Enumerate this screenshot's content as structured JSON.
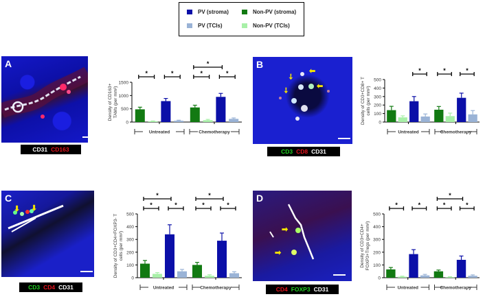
{
  "legend": {
    "items": [
      {
        "label": "PV (stroma)",
        "color": "#0b0fa8"
      },
      {
        "label": "Non-PV (stroma)",
        "color": "#127a12"
      },
      {
        "label": "PV (TCIs)",
        "color": "#9ab3d6"
      },
      {
        "label": "Non-PV (TCIs)",
        "color": "#a8f0a8"
      }
    ]
  },
  "panels": [
    {
      "letter": "A",
      "stain": [
        {
          "text": "CD31",
          "color": "#ffffff"
        },
        {
          "text": "CD163",
          "color": "#e8141e"
        }
      ]
    },
    {
      "letter": "B",
      "stain": [
        {
          "text": "CD3",
          "color": "#22d322"
        },
        {
          "text": "CD8",
          "color": "#e8141e"
        },
        {
          "text": "CD31",
          "color": "#ffffff"
        }
      ]
    },
    {
      "letter": "C",
      "stain": [
        {
          "text": "CD3",
          "color": "#22d322"
        },
        {
          "text": "CD4",
          "color": "#e8141e"
        },
        {
          "text": "CD31",
          "color": "#ffffff"
        }
      ]
    },
    {
      "letter": "D",
      "stain": [
        {
          "text": "CD4",
          "color": "#e8141e"
        },
        {
          "text": "FOXP3",
          "color": "#22d322"
        },
        {
          "text": "CD31",
          "color": "#ffffff"
        }
      ]
    }
  ],
  "chart_data": [
    {
      "type": "bar",
      "panel": "A",
      "ylabel": "Density of CD163+ TAMs (per mm²)",
      "ylim": [
        0,
        1500
      ],
      "yticks": [
        0,
        500,
        1000,
        1500
      ],
      "groups": [
        "Untreated",
        "Chemotherapy"
      ],
      "series_order": [
        "Non-PV (stroma)",
        "Non-PV (TCIs)",
        "PV (stroma)",
        "PV (TCIs)"
      ],
      "series": [
        {
          "name": "Non-PV (stroma)",
          "values": [
            480,
            550
          ],
          "errors": [
            80,
            85
          ]
        },
        {
          "name": "Non-PV (TCIs)",
          "values": [
            30,
            70
          ],
          "errors": [
            10,
            30
          ]
        },
        {
          "name": "PV (stroma)",
          "values": [
            790,
            950
          ],
          "errors": [
            100,
            130
          ]
        },
        {
          "name": "PV (TCIs)",
          "values": [
            50,
            120
          ],
          "errors": [
            20,
            35
          ]
        }
      ],
      "significance": [
        {
          "group": 0,
          "from": 0,
          "to": 1,
          "level": 0,
          "label": "*"
        },
        {
          "group": 0,
          "from": 2,
          "to": 3,
          "level": 0,
          "label": "*"
        },
        {
          "group": 1,
          "from": 0,
          "to": 1,
          "level": 0,
          "label": "*"
        },
        {
          "group": 1,
          "from": 2,
          "to": 3,
          "level": 0,
          "label": "*"
        },
        {
          "group": 1,
          "from": 0,
          "to": 2,
          "level": 1,
          "label": "*"
        }
      ]
    },
    {
      "type": "bar",
      "panel": "B",
      "ylabel": "Density of CD3+CD8+ T cells (per mm²)",
      "ylim": [
        0,
        500
      ],
      "yticks": [
        0,
        100,
        200,
        300,
        400,
        500
      ],
      "groups": [
        "Untreated",
        "Chemotherapy"
      ],
      "series_order": [
        "Non-PV (stroma)",
        "Non-PV (TCIs)",
        "PV (stroma)",
        "PV (TCIs)"
      ],
      "series": [
        {
          "name": "Non-PV (stroma)",
          "values": [
            140,
            145
          ],
          "errors": [
            45,
            38
          ]
        },
        {
          "name": "Non-PV (TCIs)",
          "values": [
            55,
            70
          ],
          "errors": [
            18,
            35
          ]
        },
        {
          "name": "PV (stroma)",
          "values": [
            245,
            285
          ],
          "errors": [
            55,
            55
          ]
        },
        {
          "name": "PV (TCIs)",
          "values": [
            65,
            90
          ],
          "errors": [
            30,
            45
          ]
        }
      ],
      "significance": [
        {
          "group": 0,
          "from": 2,
          "to": 3,
          "level": 0,
          "label": "*"
        },
        {
          "group": 1,
          "from": 0,
          "to": 1,
          "level": 0,
          "label": "*"
        },
        {
          "group": 1,
          "from": 2,
          "to": 3,
          "level": 0,
          "label": "*"
        }
      ]
    },
    {
      "type": "bar",
      "panel": "C",
      "ylabel": "Density of CD3+CD4+FOXP3- T cells (per mm²)",
      "ylim": [
        0,
        500
      ],
      "yticks": [
        0,
        100,
        200,
        300,
        400,
        500
      ],
      "groups": [
        "Untreated",
        "Chemotherapy"
      ],
      "series_order": [
        "Non-PV (stroma)",
        "Non-PV (TCIs)",
        "PV (stroma)",
        "PV (TCIs)"
      ],
      "series": [
        {
          "name": "Non-PV (stroma)",
          "values": [
            110,
            100
          ],
          "errors": [
            25,
            20
          ]
        },
        {
          "name": "Non-PV (TCIs)",
          "values": [
            30,
            15
          ],
          "errors": [
            10,
            8
          ]
        },
        {
          "name": "PV (stroma)",
          "values": [
            340,
            290
          ],
          "errors": [
            75,
            60
          ]
        },
        {
          "name": "PV (TCIs)",
          "values": [
            50,
            35
          ],
          "errors": [
            15,
            12
          ]
        }
      ],
      "significance": [
        {
          "group": 0,
          "from": 0,
          "to": 1,
          "level": 0,
          "label": "*"
        },
        {
          "group": 0,
          "from": 2,
          "to": 3,
          "level": 0,
          "label": "*"
        },
        {
          "group": 0,
          "from": 0,
          "to": 2,
          "level": 1,
          "label": "*"
        },
        {
          "group": 1,
          "from": 0,
          "to": 1,
          "level": 0,
          "label": "*"
        },
        {
          "group": 1,
          "from": 2,
          "to": 3,
          "level": 0,
          "label": "*"
        },
        {
          "group": 1,
          "from": 0,
          "to": 2,
          "level": 1,
          "label": "*"
        }
      ]
    },
    {
      "type": "bar",
      "panel": "D",
      "ylabel": "Density of CD3+CD4+ FOXP3+Tregs (per mm²)",
      "ylim": [
        0,
        500
      ],
      "yticks": [
        0,
        100,
        200,
        300,
        400,
        500
      ],
      "groups": [
        "Untreated",
        "Chemotherapy"
      ],
      "series_order": [
        "Non-PV (stroma)",
        "Non-PV (TCIs)",
        "PV (stroma)",
        "PV (TCIs)"
      ],
      "series": [
        {
          "name": "Non-PV (stroma)",
          "values": [
            65,
            50
          ],
          "errors": [
            15,
            10
          ]
        },
        {
          "name": "Non-PV (TCIs)",
          "values": [
            8,
            5
          ],
          "errors": [
            4,
            3
          ]
        },
        {
          "name": "PV (stroma)",
          "values": [
            185,
            140
          ],
          "errors": [
            35,
            30
          ]
        },
        {
          "name": "PV (TCIs)",
          "values": [
            18,
            15
          ],
          "errors": [
            8,
            7
          ]
        }
      ],
      "significance": [
        {
          "group": 0,
          "from": 0,
          "to": 1,
          "level": 0,
          "label": "*"
        },
        {
          "group": 0,
          "from": 2,
          "to": 3,
          "level": 0,
          "label": "*"
        },
        {
          "group": 1,
          "from": 0,
          "to": 1,
          "level": 0,
          "label": "*"
        },
        {
          "group": 1,
          "from": 2,
          "to": 3,
          "level": 0,
          "label": "*"
        },
        {
          "group": 1,
          "from": 0,
          "to": 2,
          "level": 1,
          "label": "*"
        }
      ]
    }
  ]
}
